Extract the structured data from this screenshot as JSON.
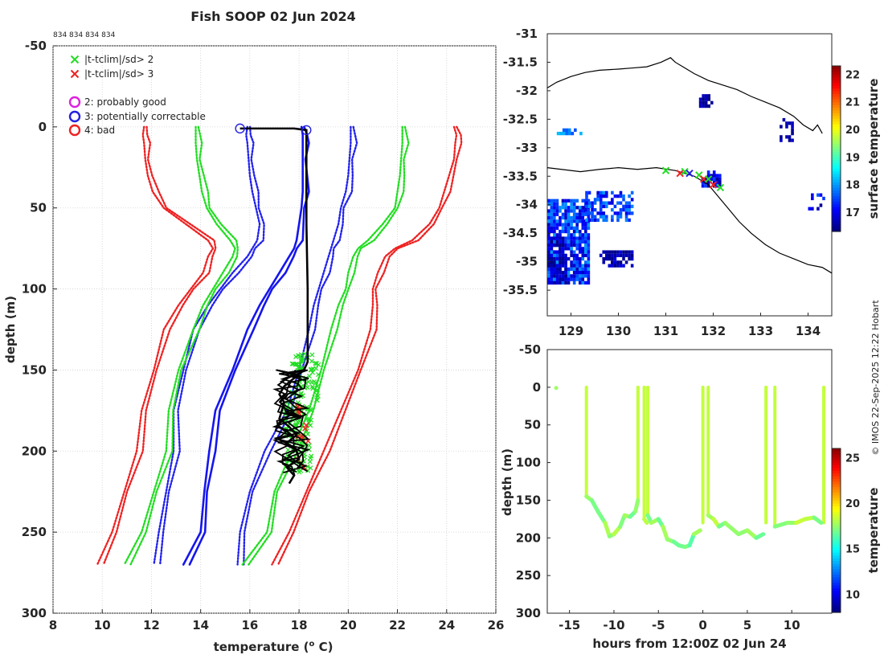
{
  "figure": {
    "title": "Fish SOOP 02 Jun 2024",
    "id_labels": "834 834 834 834",
    "credit": "© IMOS 22-Sep-2025 12:22 Hobart"
  },
  "chart_data": [
    {
      "name": "profile",
      "type": "line",
      "xlabel": "temperature (° C)",
      "xlabel_main": "temperature (",
      "xlabel_sup": "o",
      "xlabel_tail": " C)",
      "ylabel": "depth (m)",
      "xlim": [
        8,
        26
      ],
      "ylim": [
        -50,
        300
      ],
      "y_reversed": true,
      "xticks": [
        8,
        10,
        12,
        14,
        16,
        18,
        20,
        22,
        24,
        26
      ],
      "yticks": [
        -50,
        0,
        50,
        100,
        150,
        200,
        250,
        300
      ],
      "grid": true,
      "legend": [
        {
          "marker": "x",
          "color": "#22dd22",
          "label": "|t-tclim|/sd> 2"
        },
        {
          "marker": "x",
          "color": "#ee2222",
          "label": "|t-tclim|/sd> 3"
        },
        {
          "marker": "o",
          "color": "#dd22dd",
          "label": "2: probably good"
        },
        {
          "marker": "o",
          "color": "#2222dd",
          "label": "3: potentially correctable"
        },
        {
          "marker": "o",
          "color": "#ee2222",
          "label": "4: bad"
        }
      ],
      "clim_depths": [
        0,
        5,
        10,
        20,
        30,
        40,
        50,
        60,
        70,
        75,
        80,
        90,
        100,
        110,
        125,
        150,
        175,
        200,
        225,
        250,
        270
      ],
      "clim_series": [
        {
          "name": "mean",
          "color": "#1515ee",
          "style": "solid",
          "values": [
            18.1,
            18.15,
            18.15,
            18.15,
            18.15,
            18.15,
            18.1,
            18.0,
            17.9,
            17.8,
            17.6,
            17.2,
            16.8,
            16.4,
            15.9,
            15.3,
            14.6,
            14.35,
            14.15,
            14.0,
            13.3
          ]
        },
        {
          "name": "+1sd",
          "color": "#2222ee",
          "style": "dotted",
          "values": [
            20.1,
            20.1,
            20.1,
            20.05,
            20.0,
            19.9,
            19.7,
            19.6,
            19.4,
            19.3,
            19.2,
            19.0,
            18.8,
            18.6,
            18.4,
            18.0,
            17.5,
            16.6,
            16.0,
            15.6,
            15.5
          ]
        },
        {
          "name": "-1sd",
          "color": "#2222ee",
          "style": "dotted",
          "values": [
            15.9,
            15.85,
            15.9,
            15.95,
            16.0,
            16.1,
            16.25,
            16.4,
            16.3,
            16.1,
            15.9,
            15.3,
            14.8,
            14.3,
            13.7,
            13.3,
            12.9,
            12.9,
            12.6,
            12.3,
            12.1
          ]
        },
        {
          "name": "+2sd",
          "color": "#22dd22",
          "style": "dotted",
          "values": [
            22.2,
            22.2,
            22.2,
            22.15,
            22.1,
            22.0,
            21.9,
            21.4,
            20.8,
            20.4,
            20.2,
            20.0,
            19.9,
            19.6,
            19.3,
            18.9,
            18.4,
            17.7,
            17.0,
            16.7,
            15.7
          ]
        },
        {
          "name": "-2sd",
          "color": "#22dd22",
          "style": "dotted",
          "values": [
            13.8,
            13.8,
            13.8,
            13.85,
            13.95,
            14.05,
            14.25,
            14.65,
            15.2,
            15.4,
            15.3,
            14.9,
            14.5,
            14.1,
            13.7,
            13.1,
            12.7,
            12.6,
            12.1,
            11.6,
            10.9
          ]
        },
        {
          "name": "+3sd",
          "color": "#ee2222",
          "style": "dotted",
          "values": [
            24.3,
            24.4,
            24.35,
            24.3,
            24.1,
            23.9,
            23.7,
            23.3,
            22.6,
            21.9,
            21.5,
            21.2,
            21.0,
            21.0,
            20.9,
            20.4,
            19.7,
            19.0,
            18.3,
            17.6,
            16.9
          ]
        },
        {
          "name": "-3sd",
          "color": "#ee2222",
          "style": "dotted",
          "values": [
            11.7,
            11.65,
            11.7,
            11.75,
            11.85,
            12.05,
            12.5,
            13.4,
            14.3,
            14.5,
            14.3,
            14.1,
            13.6,
            13.1,
            12.5,
            12.1,
            11.6,
            11.4,
            10.9,
            10.4,
            9.8
          ]
        }
      ],
      "profile_black": {
        "color": "#000000",
        "depth": [
          1,
          1,
          2,
          5,
          20,
          60,
          100,
          130,
          145,
          150,
          155,
          160,
          165,
          170,
          175,
          180,
          185,
          190,
          195,
          200,
          205,
          210,
          215,
          220
        ],
        "temp": [
          15.6,
          17.8,
          18.3,
          18.3,
          18.3,
          18.3,
          18.35,
          18.35,
          18.35,
          18.2,
          17.8,
          17.4,
          17.2,
          17.4,
          17.3,
          17.2,
          17.6,
          17.9,
          17.5,
          17.9,
          18.0,
          17.5,
          17.8,
          17.6
        ]
      },
      "flag_circles": [
        {
          "temp": 15.6,
          "depth": 1,
          "flag": 3
        },
        {
          "temp": 18.3,
          "depth": 2,
          "flag": 3
        }
      ]
    },
    {
      "name": "map",
      "type": "heatmap",
      "variable": "surface temperature",
      "xlim": [
        128.5,
        134.5
      ],
      "ylim": [
        -35.95,
        -31
      ],
      "xticks": [
        129,
        130,
        131,
        132,
        133,
        134
      ],
      "yticks": [
        -31,
        -31.5,
        -32,
        -32.5,
        -33,
        -33.5,
        -34,
        -34.5,
        -35,
        -35.5
      ],
      "colorbar": {
        "label": "surface temperature",
        "range": [
          16.3,
          22.3
        ],
        "ticks": [
          17,
          18,
          19,
          20,
          21,
          22
        ]
      },
      "coastline": [
        [
          128.5,
          -31.95
        ],
        [
          128.7,
          -31.85
        ],
        [
          129.0,
          -31.75
        ],
        [
          129.3,
          -31.68
        ],
        [
          129.6,
          -31.64
        ],
        [
          130.0,
          -31.62
        ],
        [
          130.3,
          -31.6
        ],
        [
          130.6,
          -31.58
        ],
        [
          130.9,
          -31.5
        ],
        [
          131.1,
          -31.42
        ],
        [
          131.2,
          -31.5
        ],
        [
          131.4,
          -31.6
        ],
        [
          131.6,
          -31.7
        ],
        [
          131.9,
          -31.82
        ],
        [
          132.2,
          -31.9
        ],
        [
          132.5,
          -31.98
        ],
        [
          132.8,
          -32.1
        ],
        [
          133.1,
          -32.2
        ],
        [
          133.4,
          -32.3
        ],
        [
          133.7,
          -32.45
        ],
        [
          133.9,
          -32.6
        ],
        [
          134.1,
          -32.7
        ],
        [
          134.2,
          -32.6
        ],
        [
          134.3,
          -32.75
        ]
      ],
      "coastline2": [
        [
          128.5,
          -33.35
        ],
        [
          128.8,
          -33.38
        ],
        [
          129.2,
          -33.42
        ],
        [
          129.6,
          -33.38
        ],
        [
          130.0,
          -33.35
        ],
        [
          130.4,
          -33.38
        ],
        [
          130.8,
          -33.35
        ],
        [
          131.2,
          -33.4
        ],
        [
          131.6,
          -33.5
        ],
        [
          131.9,
          -33.65
        ],
        [
          132.1,
          -33.85
        ],
        [
          132.3,
          -34.05
        ],
        [
          132.55,
          -34.3
        ],
        [
          132.8,
          -34.5
        ],
        [
          133.1,
          -34.7
        ],
        [
          133.4,
          -34.85
        ],
        [
          133.7,
          -34.95
        ],
        [
          134.0,
          -35.05
        ],
        [
          134.3,
          -35.1
        ],
        [
          134.5,
          -35.2
        ]
      ],
      "track": [
        {
          "lon": 131.0,
          "lat": -33.4,
          "flag": "green"
        },
        {
          "lon": 131.3,
          "lat": -33.45,
          "flag": "red"
        },
        {
          "lon": 131.4,
          "lat": -33.42,
          "flag": "green"
        },
        {
          "lon": 131.5,
          "lat": -33.45,
          "flag": "blue"
        },
        {
          "lon": 131.7,
          "lat": -33.48,
          "flag": "green"
        },
        {
          "lon": 131.8,
          "lat": -33.55,
          "flag": "red"
        },
        {
          "lon": 131.9,
          "lat": -33.55,
          "flag": "green"
        },
        {
          "lon": 132.0,
          "lat": -33.65,
          "flag": "red"
        },
        {
          "lon": 132.15,
          "lat": -33.7,
          "flag": "green"
        }
      ]
    },
    {
      "name": "section",
      "type": "scatter",
      "xlabel": "hours from 12:00Z 02 Jun 24",
      "ylabel": "depth (m)",
      "xlim": [
        -17.5,
        14.5
      ],
      "ylim": [
        -50,
        300
      ],
      "y_reversed": true,
      "xticks": [
        -15,
        -10,
        -5,
        0,
        5,
        10
      ],
      "yticks": [
        -50,
        0,
        50,
        100,
        150,
        200,
        250,
        300
      ],
      "colorbar": {
        "label": "temperature",
        "range": [
          8,
          26
        ],
        "ticks": [
          10,
          15,
          20,
          25
        ]
      },
      "points_single": [
        {
          "hour": -16.5,
          "depth": 1,
          "temp": 17.5
        }
      ],
      "casts": [
        {
          "start": -13.1,
          "end": -7.3,
          "profile": [
            [
              -13.1,
              145
            ],
            [
              -12.5,
              150
            ],
            [
              -11.8,
              165
            ],
            [
              -11.0,
              180
            ],
            [
              -10.5,
              198
            ],
            [
              -10.0,
              195
            ],
            [
              -9.3,
              185
            ],
            [
              -8.8,
              170
            ],
            [
              -8.2,
              172
            ],
            [
              -7.6,
              165
            ],
            [
              -7.3,
              150
            ]
          ],
          "temp": 17.0
        },
        {
          "start": -6.6,
          "end": -6.2,
          "profile": [
            [
              -6.6,
              175
            ],
            [
              -6.3,
              180
            ]
          ],
          "temp": 17.8
        },
        {
          "start": -6.2,
          "end": 0.0,
          "profile": [
            [
              -6.2,
              170
            ],
            [
              -5.8,
              180
            ],
            [
              -5.0,
              175
            ],
            [
              -4.5,
              185
            ],
            [
              -4.0,
              202
            ],
            [
              -3.3,
              205
            ],
            [
              -2.7,
              210
            ],
            [
              -2.0,
              212
            ],
            [
              -1.5,
              210
            ],
            [
              -1.0,
              195
            ],
            [
              -0.3,
              190
            ]
          ],
          "temp": 16.8
        },
        {
          "start": 0.6,
          "end": 7.1,
          "profile": [
            [
              0.6,
              170
            ],
            [
              1.2,
              175
            ],
            [
              1.8,
              185
            ],
            [
              2.5,
              180
            ],
            [
              3.2,
              187
            ],
            [
              4.0,
              195
            ],
            [
              5.0,
              190
            ],
            [
              6.0,
              200
            ],
            [
              6.8,
              195
            ]
          ],
          "temp": 17.2
        },
        {
          "start": 8.1,
          "end": 13.6,
          "profile": [
            [
              8.1,
              185
            ],
            [
              9.5,
              180
            ],
            [
              10.5,
              180
            ],
            [
              11.5,
              175
            ],
            [
              12.5,
              173
            ],
            [
              13.3,
              180
            ]
          ],
          "temp": 17.4
        }
      ],
      "vertical_drops": [
        -13.1,
        -7.3,
        -6.6,
        -6.2,
        0.0,
        0.6,
        7.1,
        8.1,
        13.6
      ]
    }
  ]
}
